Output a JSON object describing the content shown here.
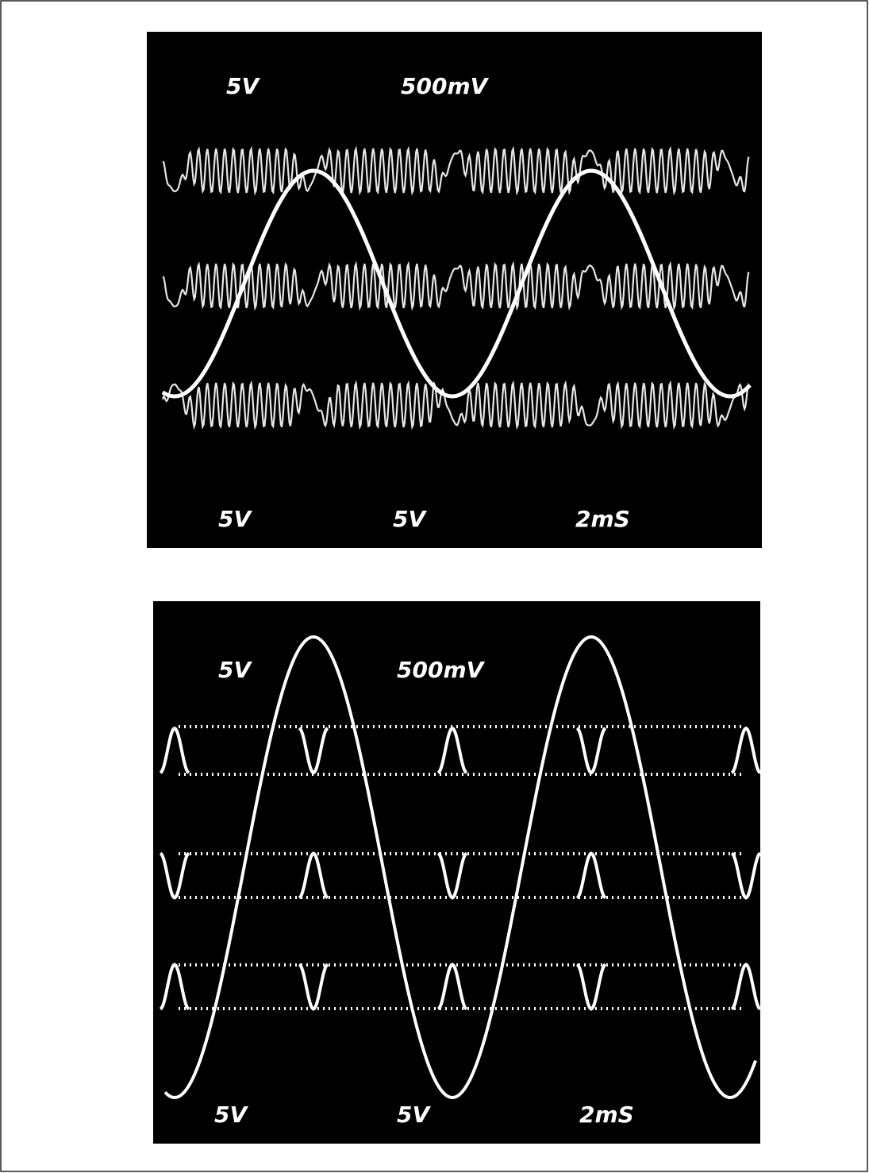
{
  "panels": [
    {
      "top_labels": [
        "5V",
        "500mV"
      ],
      "bottom_labels": [
        "5V",
        "5V",
        "2mS"
      ]
    },
    {
      "top_labels": [
        "5V",
        "500mV"
      ],
      "bottom_labels": [
        "5V",
        "5V",
        "2mS"
      ]
    }
  ]
}
